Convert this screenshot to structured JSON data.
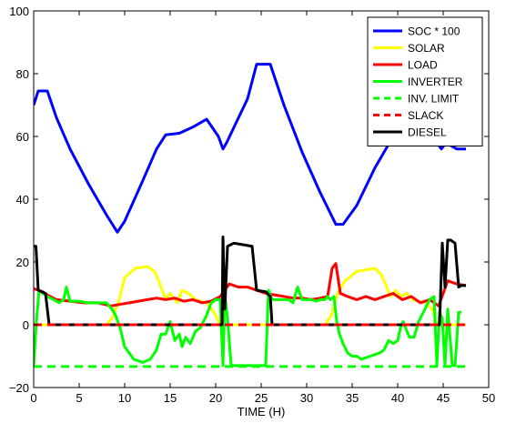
{
  "chart_data": {
    "type": "line",
    "title": "",
    "xlabel": "TIME (H)",
    "ylabel": "",
    "xlim": [
      0,
      50
    ],
    "ylim": [
      -20,
      100
    ],
    "xticks": [
      0,
      5,
      10,
      15,
      20,
      25,
      30,
      35,
      40,
      45,
      50
    ],
    "yticks": [
      -20,
      0,
      20,
      40,
      60,
      80,
      100
    ],
    "grid": false,
    "legend_position": "top-right",
    "series": [
      {
        "name": "SOC * 100",
        "color": "#0000ff",
        "dash": "solid",
        "x": [
          0,
          0.5,
          1.5,
          2.5,
          4,
          6,
          8,
          9.2,
          10,
          12,
          13.5,
          14.5,
          16,
          17.5,
          19,
          20.3,
          20.8,
          21.2,
          23.5,
          24.5,
          25.5,
          26,
          27.5,
          29.5,
          31.5,
          33.2,
          34,
          35.5,
          37.5,
          39.5,
          41.5,
          43,
          44.3,
          44.8,
          45.3,
          46.5,
          47.5
        ],
        "y": [
          70,
          74.5,
          74.5,
          66,
          56,
          45,
          35,
          29.5,
          33,
          46,
          56,
          60.5,
          61,
          63,
          65.5,
          60,
          56,
          58,
          72,
          83,
          83,
          83,
          70,
          55,
          42,
          32,
          32,
          38,
          50,
          60,
          66,
          67,
          58,
          56,
          58,
          56,
          56
        ]
      },
      {
        "name": "SOLAR",
        "color": "#ffff00",
        "dash": "solid",
        "x": [
          0,
          8,
          8.6,
          9.3,
          10,
          11.2,
          12.5,
          13.3,
          14,
          14.5,
          15,
          15.8,
          16.3,
          17,
          17.8,
          19,
          19.8,
          20.5,
          32,
          32.7,
          33.4,
          34.2,
          35.5,
          36.5,
          37.5,
          38.2,
          38.8,
          39.2,
          39.8,
          40.3,
          41,
          41.6,
          43,
          43.8,
          44.3,
          47.5
        ],
        "y": [
          0,
          0,
          2,
          7,
          15,
          18,
          18.5,
          17,
          12,
          8,
          10,
          7,
          11,
          10,
          8,
          7,
          4,
          0,
          0,
          3,
          10,
          14,
          17,
          17.5,
          18,
          16,
          12,
          9,
          11,
          9,
          10,
          8,
          7,
          5,
          0,
          0
        ]
      },
      {
        "name": "LOAD",
        "color": "#ff0000",
        "dash": "solid",
        "x": [
          0,
          0.5,
          1,
          1.5,
          2.5,
          4,
          5.5,
          7,
          8.5,
          9.5,
          10.5,
          11.5,
          12.5,
          13.5,
          14.5,
          15.5,
          16.5,
          17.5,
          18.5,
          19.5,
          20.5,
          21.5,
          22.5,
          23.5,
          24.5,
          25.5,
          26.5,
          27.5,
          28.5,
          29.5,
          30.5,
          31.5,
          32.3,
          32.8,
          33.2,
          33.7,
          34.5,
          35.5,
          36.5,
          37.5,
          38.5,
          39.5,
          40.5,
          41.5,
          42.5,
          43.5,
          44.5,
          45.5,
          46.5,
          47.5
        ],
        "y": [
          11.5,
          11,
          10.5,
          9.5,
          8,
          7.5,
          7,
          7,
          6,
          6.5,
          7,
          7.5,
          8,
          8.5,
          8,
          8.5,
          7.5,
          8,
          7,
          7.5,
          9,
          13,
          12,
          12,
          11,
          10,
          9.5,
          9,
          8.5,
          8.5,
          8,
          8.5,
          9,
          18,
          19.5,
          10,
          9,
          8,
          9,
          8,
          9,
          10,
          8,
          9,
          7,
          8,
          6,
          14,
          13,
          12.5
        ]
      },
      {
        "name": "INVERTER",
        "color": "#00ff00",
        "dash": "solid",
        "x": [
          0,
          0.3,
          0.6,
          1,
          1.5,
          2.2,
          2.8,
          3.3,
          3.6,
          4,
          5,
          6,
          7,
          8,
          8.6,
          9,
          9.5,
          10,
          11,
          12,
          12.8,
          13.5,
          14,
          14.5,
          15,
          15.5,
          16,
          16.3,
          16.7,
          17.2,
          17.8,
          18.3,
          19,
          19.5,
          20,
          20.5,
          20.8,
          21,
          21.3,
          21.7,
          22,
          23,
          24,
          25,
          25.5,
          25.8,
          26.2,
          27,
          28,
          28.5,
          29,
          29.5,
          30.5,
          31,
          31.5,
          32,
          32.3,
          32.6,
          33,
          33.3,
          33.6,
          34,
          34.5,
          35,
          35.5,
          36,
          37,
          38,
          38.5,
          39,
          39.5,
          40,
          40.3,
          40.6,
          41,
          41.3,
          41.8,
          42.3,
          43,
          43.5,
          44,
          44.3,
          44.6,
          44.9,
          45.2,
          45.5,
          46,
          46.3,
          46.7,
          47
        ],
        "y": [
          -13,
          1,
          11,
          10,
          9,
          8,
          7,
          8,
          12,
          7.5,
          7.5,
          7,
          7,
          7,
          5,
          3,
          -1,
          -7,
          -11,
          -12,
          -11,
          -8,
          -3,
          -3,
          1,
          -5,
          -3,
          -7,
          -4,
          -6,
          -2,
          -1,
          3,
          7,
          8,
          8,
          -13,
          10,
          2,
          -13,
          -13,
          -13,
          -13,
          -13,
          -13,
          11,
          8,
          8,
          8,
          7,
          12,
          8,
          8,
          7.5,
          8,
          8,
          9,
          8,
          9,
          1,
          -3,
          -6,
          -9,
          -10,
          -10,
          -11,
          -10,
          -9,
          -8,
          -5,
          -6,
          -5,
          -1,
          1,
          -2,
          -4,
          -4,
          1,
          5,
          8,
          9,
          -13,
          4,
          2,
          -13,
          5,
          -13,
          -13,
          4,
          4
        ]
      },
      {
        "name": "INV. LIMIT",
        "color": "#00ff00",
        "dash": "dashed",
        "x": [
          0,
          47.5
        ],
        "y": [
          -13.3,
          -13.3
        ]
      },
      {
        "name": "SLACK",
        "color": "#ff0000",
        "dash": "dashed",
        "x": [
          0,
          47.5
        ],
        "y": [
          0,
          0
        ]
      },
      {
        "name": "DIESEL",
        "color": "#000000",
        "dash": "solid",
        "x": [
          0,
          0.25,
          0.5,
          1.3,
          1.5,
          1.7,
          20.7,
          20.8,
          21,
          21.3,
          22,
          23,
          24,
          24.5,
          25.5,
          26,
          26.2,
          44.6,
          44.9,
          45.2,
          45.5,
          45.8,
          46.3,
          46.7,
          47,
          47.5
        ],
        "y": [
          25,
          25,
          11,
          10,
          5,
          0,
          0,
          28,
          5,
          25,
          26,
          25.5,
          25,
          11,
          10.5,
          9,
          0,
          0,
          26,
          12,
          27,
          27,
          26,
          12,
          12.5,
          12.5
        ]
      }
    ]
  }
}
